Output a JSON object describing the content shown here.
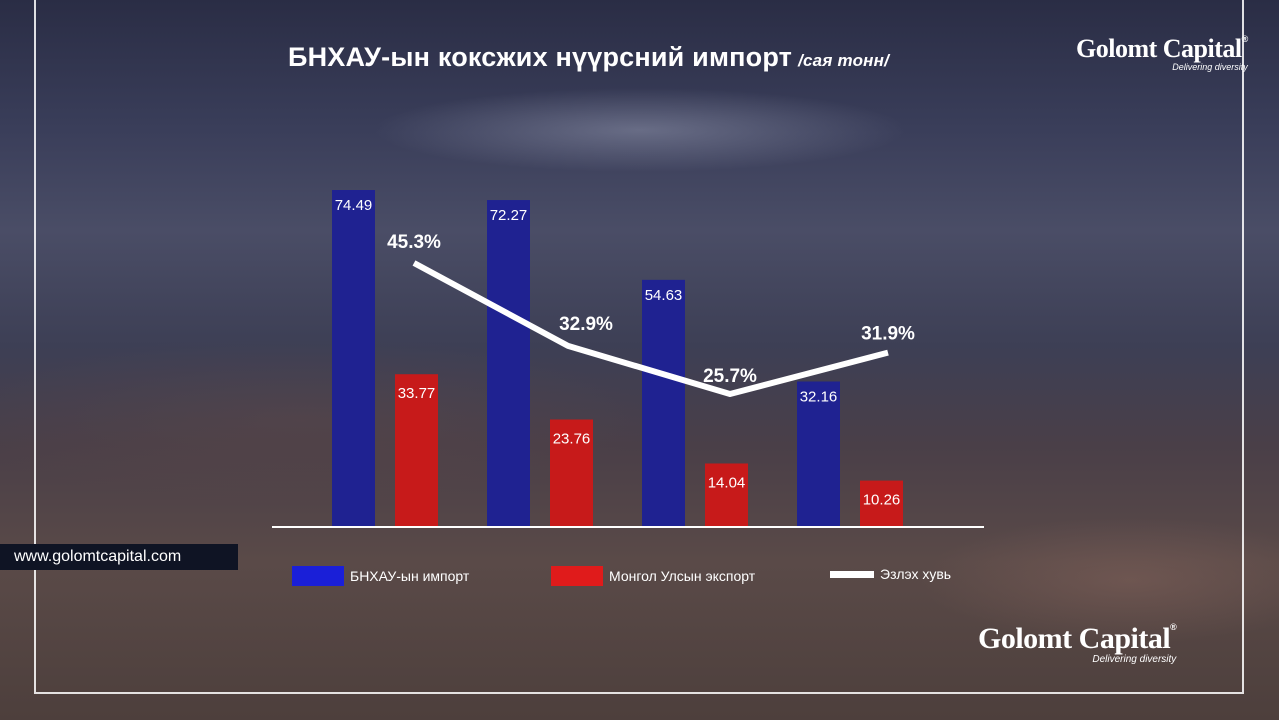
{
  "header": {
    "title": "БНХАУ-ын коксжих нүүрсний импорт",
    "unit": "/сая тонн/"
  },
  "logo": {
    "name": "Golomt Capital",
    "registered": "®",
    "tagline": "Delivering diversity"
  },
  "website": "www.golomtcapital.com",
  "colors": {
    "import": "#1f2291",
    "export": "#c71a1a",
    "share": "#ffffff"
  },
  "chart_data": {
    "type": "bar",
    "title": "БНХАУ-ын коксжих нүүрсний импорт /сая тонн/",
    "categories": [
      "",
      "",
      "",
      ""
    ],
    "series": [
      {
        "name": "БНХАУ-ын импорт",
        "type": "bar",
        "values": [
          74.49,
          72.27,
          54.63,
          32.16
        ],
        "labels": [
          "74.49",
          "72.27",
          "54.63",
          "32.16"
        ]
      },
      {
        "name": "Монгол Улсын экспорт",
        "type": "bar",
        "values": [
          33.77,
          23.76,
          14.04,
          10.26
        ],
        "labels": [
          "33.77",
          "23.76",
          "14.04",
          "10.26"
        ]
      },
      {
        "name": "Эзлэх хувь",
        "type": "line",
        "values": [
          45.3,
          32.9,
          25.7,
          31.9
        ],
        "labels": [
          "45.3%",
          "32.9%",
          "25.7%",
          "31.9%"
        ]
      }
    ],
    "ylim": [
      0,
      75
    ],
    "grid": false,
    "legend": "bottom"
  }
}
